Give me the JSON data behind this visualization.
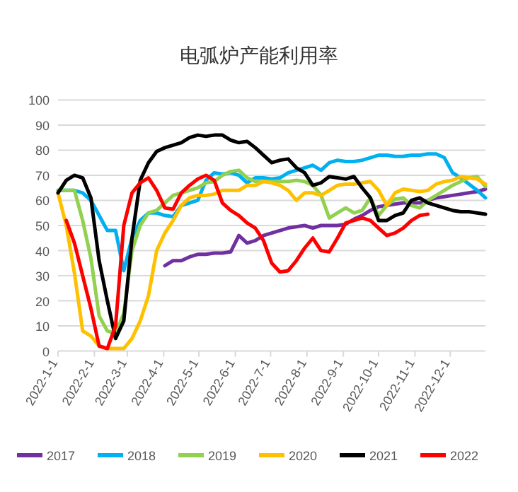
{
  "chart_data": {
    "type": "line",
    "title": "电弧炉产能利用率",
    "x": [
      "2022-01-01",
      "2022-01-08",
      "2022-01-15",
      "2022-01-22",
      "2022-01-29",
      "2022-02-05",
      "2022-02-12",
      "2022-02-19",
      "2022-02-26",
      "2022-03-05",
      "2022-03-12",
      "2022-03-19",
      "2022-03-26",
      "2022-04-02",
      "2022-04-09",
      "2022-04-16",
      "2022-04-23",
      "2022-04-30",
      "2022-05-07",
      "2022-05-14",
      "2022-05-21",
      "2022-05-28",
      "2022-06-04",
      "2022-06-11",
      "2022-06-18",
      "2022-06-25",
      "2022-07-02",
      "2022-07-09",
      "2022-07-16",
      "2022-07-23",
      "2022-07-30",
      "2022-08-06",
      "2022-08-13",
      "2022-08-20",
      "2022-08-27",
      "2022-09-03",
      "2022-09-10",
      "2022-09-17",
      "2022-09-24",
      "2022-10-01",
      "2022-10-08",
      "2022-10-15",
      "2022-10-22",
      "2022-10-29",
      "2022-11-05",
      "2022-11-12",
      "2022-11-19",
      "2022-11-26",
      "2022-12-03",
      "2022-12-10",
      "2022-12-17",
      "2022-12-24",
      "2022-12-31"
    ],
    "series": [
      {
        "name": "2017",
        "color": "#7030a0",
        "values": [
          null,
          null,
          null,
          null,
          null,
          null,
          null,
          null,
          null,
          null,
          null,
          null,
          null,
          34,
          36,
          36,
          37.5,
          38.5,
          38.5,
          39,
          39,
          39.5,
          46,
          43,
          44,
          46,
          47,
          48,
          49,
          49.5,
          50,
          49,
          50,
          50,
          50,
          50.5,
          52.5,
          54,
          56,
          57.5,
          58,
          58.5,
          59,
          59,
          59,
          60,
          61,
          61.5,
          62,
          62.5,
          63,
          63.5,
          64.5
        ]
      },
      {
        "name": "2018",
        "color": "#00b0f0",
        "values": [
          64,
          64,
          64,
          63,
          60,
          54,
          48,
          48,
          32,
          45,
          52,
          55,
          55,
          54,
          53.5,
          58,
          59,
          60,
          68,
          71,
          70.5,
          71,
          70,
          67,
          69,
          69,
          68.5,
          69,
          71,
          72,
          73,
          74,
          72,
          75,
          76,
          75.5,
          75.5,
          76,
          77,
          78,
          78,
          77.5,
          77.5,
          78,
          78,
          78.5,
          78.5,
          77,
          71,
          69,
          66.5,
          64,
          61
        ]
      },
      {
        "name": "2019",
        "color": "#92d050",
        "values": [
          64,
          64,
          64,
          52,
          37,
          14,
          8,
          7,
          15,
          40,
          50,
          55,
          56,
          59,
          62,
          63,
          64,
          65,
          67,
          67.5,
          70,
          71.5,
          72,
          69,
          67.5,
          67.5,
          67.5,
          67.5,
          67.5,
          68,
          67.5,
          66,
          62,
          53,
          55,
          57,
          55,
          56,
          61,
          54,
          58,
          60.5,
          61,
          58,
          57,
          60,
          62,
          64,
          66,
          67.5,
          69,
          69.5,
          65.5
        ]
      },
      {
        "name": "2020",
        "color": "#ffc000",
        "values": [
          63,
          50,
          31,
          8,
          6,
          2,
          1,
          1,
          1,
          5,
          12,
          22,
          40,
          47,
          52,
          58,
          61,
          62,
          62,
          62.5,
          64,
          64,
          64,
          66,
          66,
          67.5,
          67,
          66,
          64,
          60,
          63,
          63,
          62,
          64,
          66,
          66.5,
          66.5,
          67,
          67.5,
          64,
          58,
          63,
          64.5,
          64,
          63.5,
          64,
          66.5,
          67.5,
          68,
          69.5,
          69,
          68.5,
          66.5
        ]
      },
      {
        "name": "2021",
        "color": "#000000",
        "values": [
          63,
          68,
          70,
          69,
          61,
          36,
          20,
          5,
          12,
          45,
          68,
          75,
          79.5,
          81,
          82,
          83,
          85,
          86,
          85.5,
          86,
          86,
          84,
          83,
          83.5,
          81,
          78,
          75,
          76,
          76.5,
          73,
          71,
          66,
          67,
          69.5,
          69,
          68.5,
          69.5,
          65,
          61,
          52,
          52,
          54,
          55,
          60,
          61,
          59,
          58,
          57,
          56,
          55.5,
          55.5,
          55,
          54.5
        ]
      },
      {
        "name": "2022",
        "color": "#ff0000",
        "values": [
          null,
          52,
          43,
          30,
          17,
          2,
          1,
          10,
          50,
          63,
          67,
          69,
          64,
          57,
          56.5,
          63,
          66,
          68.5,
          70,
          68,
          59,
          56,
          54,
          51,
          49,
          44,
          35,
          31.5,
          32,
          36,
          41,
          45,
          40,
          39.5,
          45,
          51,
          52,
          53,
          52,
          49,
          46,
          47,
          49,
          52,
          54,
          54.5,
          null,
          null,
          null,
          null,
          null,
          null,
          null
        ]
      }
    ],
    "xlim": [
      "2022-01-01",
      "2022-12-31"
    ],
    "xticks": [
      {
        "value": "2022-01-01",
        "label": "2022-1-1"
      },
      {
        "value": "2022-02-01",
        "label": "2022-2-1"
      },
      {
        "value": "2022-03-01",
        "label": "2022-3-1"
      },
      {
        "value": "2022-04-01",
        "label": "2022-4-1"
      },
      {
        "value": "2022-05-01",
        "label": "2022-5-1"
      },
      {
        "value": "2022-06-01",
        "label": "2022-6-1"
      },
      {
        "value": "2022-07-01",
        "label": "2022-7-1"
      },
      {
        "value": "2022-08-01",
        "label": "2022-8-1"
      },
      {
        "value": "2022-09-01",
        "label": "2022-9-1"
      },
      {
        "value": "2022-10-01",
        "label": "2022-10-1"
      },
      {
        "value": "2022-11-01",
        "label": "2022-11-1"
      },
      {
        "value": "2022-12-01",
        "label": "2022-12-1"
      }
    ],
    "ylim": [
      0,
      100
    ],
    "yticks": [
      0,
      10,
      20,
      30,
      40,
      50,
      60,
      70,
      80,
      90,
      100
    ],
    "grid": "y",
    "legend": "bottom",
    "marker": "none",
    "line_style": "solid"
  }
}
